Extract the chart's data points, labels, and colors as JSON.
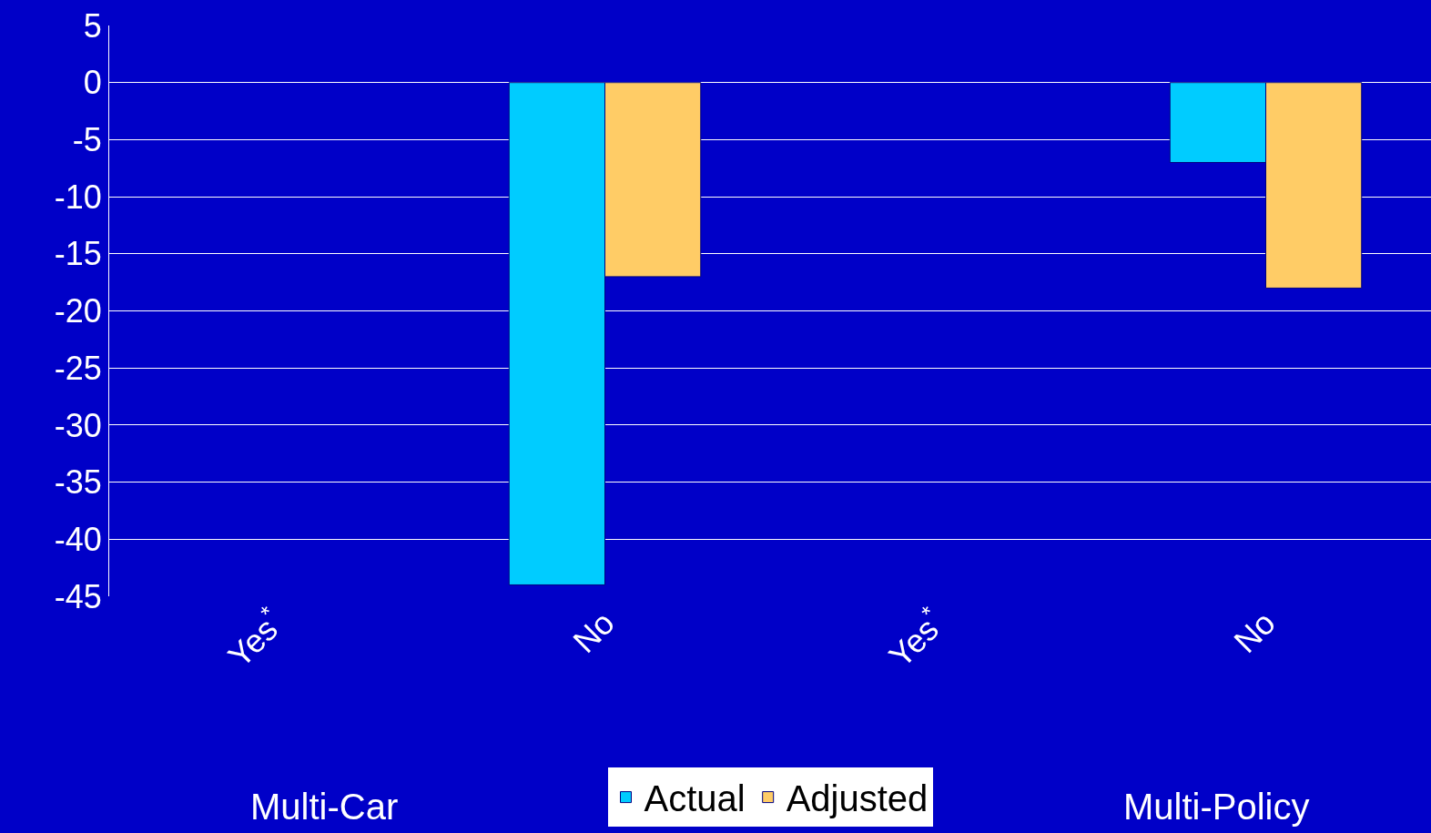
{
  "chart_data": {
    "type": "bar",
    "categories": [
      "Yes$^{*}$",
      "No",
      "Yes$^{*}$",
      "No"
    ],
    "series": [
      {
        "name": "Actual",
        "color": "#00ccff",
        "values": [
          null,
          -44,
          null,
          -7
        ]
      },
      {
        "name": "Adjusted",
        "color": "#ffcc66",
        "values": [
          null,
          -17,
          null,
          -18
        ]
      }
    ],
    "ylim": [
      -45,
      5
    ],
    "yticks": [
      5,
      0,
      -5,
      -10,
      -15,
      -20,
      -25,
      -30,
      -35,
      -40,
      -45
    ],
    "grid": "y",
    "legend": "bottom",
    "annotations": [
      "Multi-Car",
      "Multi-Policy"
    ]
  }
}
